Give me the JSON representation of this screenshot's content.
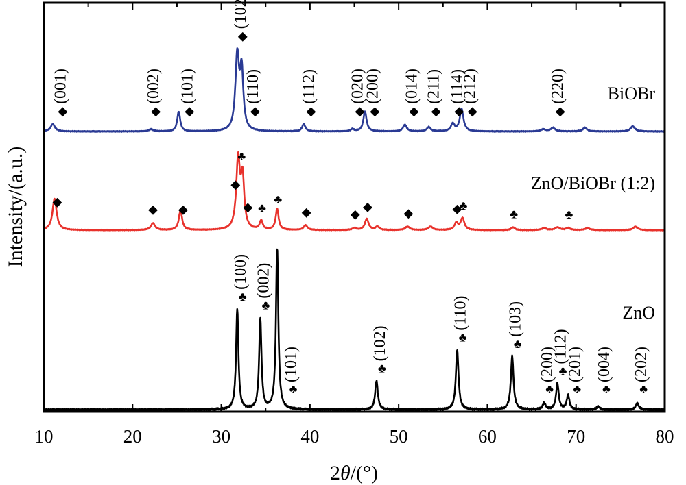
{
  "chart_data": {
    "type": "line",
    "xlabel_parts": [
      "2",
      "θ",
      "/(°)"
    ],
    "ylabel": "Intensity/(a.u.)",
    "xlim": [
      10,
      80
    ],
    "xticks": [
      "10",
      "20",
      "30",
      "40",
      "50",
      "60",
      "70",
      "80"
    ],
    "y_tick_labels": false,
    "grid": false,
    "series": [
      {
        "name": "BiOBr",
        "color": "#2a3a94",
        "baseline": 0.0,
        "peaks": [
          {
            "x": 11.0,
            "h": 0.1,
            "w": 0.3
          },
          {
            "x": 22.1,
            "h": 0.03,
            "w": 0.3
          },
          {
            "x": 25.2,
            "h": 0.27,
            "w": 0.2
          },
          {
            "x": 31.8,
            "h": 1.0,
            "w": 0.25
          },
          {
            "x": 32.3,
            "h": 0.78,
            "w": 0.22
          },
          {
            "x": 39.3,
            "h": 0.1,
            "w": 0.22
          },
          {
            "x": 44.8,
            "h": 0.03,
            "w": 0.25
          },
          {
            "x": 46.2,
            "h": 0.27,
            "w": 0.22
          },
          {
            "x": 50.7,
            "h": 0.09,
            "w": 0.25
          },
          {
            "x": 53.4,
            "h": 0.06,
            "w": 0.25
          },
          {
            "x": 56.1,
            "h": 0.1,
            "w": 0.25
          },
          {
            "x": 57.1,
            "h": 0.3,
            "w": 0.25
          },
          {
            "x": 66.3,
            "h": 0.03,
            "w": 0.3
          },
          {
            "x": 67.4,
            "h": 0.05,
            "w": 0.3
          },
          {
            "x": 71.0,
            "h": 0.05,
            "w": 0.3
          },
          {
            "x": 76.4,
            "h": 0.07,
            "w": 0.3
          }
        ],
        "annotations": [
          {
            "x": 11.5,
            "label": "(001)"
          },
          {
            "x": 22.0,
            "label": "(002)"
          },
          {
            "x": 25.8,
            "label": "(101)"
          },
          {
            "x": 31.8,
            "label": "(102)"
          },
          {
            "x": 33.2,
            "label": "(110)"
          },
          {
            "x": 39.5,
            "label": "(112)"
          },
          {
            "x": 45.0,
            "label": "(020)"
          },
          {
            "x": 46.7,
            "label": "(200)"
          },
          {
            "x": 51.1,
            "label": "(014)"
          },
          {
            "x": 53.6,
            "label": "(211)"
          },
          {
            "x": 56.2,
            "label": "(114)"
          },
          {
            "x": 57.7,
            "label": "(212)"
          },
          {
            "x": 67.6,
            "label": "(220)"
          }
        ]
      },
      {
        "name": "ZnO/BiOBr (1:2)",
        "color": "#e8322c",
        "baseline": 0.0,
        "peaks": [
          {
            "x": 11.2,
            "h": 0.45,
            "w": 0.28
          },
          {
            "x": 22.3,
            "h": 0.1,
            "w": 0.28
          },
          {
            "x": 25.4,
            "h": 0.28,
            "w": 0.22
          },
          {
            "x": 31.9,
            "h": 1.0,
            "w": 0.25
          },
          {
            "x": 32.4,
            "h": 0.7,
            "w": 0.22
          },
          {
            "x": 34.5,
            "h": 0.13,
            "w": 0.2
          },
          {
            "x": 36.3,
            "h": 0.3,
            "w": 0.2
          },
          {
            "x": 39.5,
            "h": 0.07,
            "w": 0.25
          },
          {
            "x": 45.0,
            "h": 0.03,
            "w": 0.25
          },
          {
            "x": 46.4,
            "h": 0.16,
            "w": 0.25
          },
          {
            "x": 47.6,
            "h": 0.05,
            "w": 0.25
          },
          {
            "x": 51.0,
            "h": 0.05,
            "w": 0.3
          },
          {
            "x": 53.6,
            "h": 0.05,
            "w": 0.3
          },
          {
            "x": 56.5,
            "h": 0.1,
            "w": 0.25
          },
          {
            "x": 57.2,
            "h": 0.17,
            "w": 0.25
          },
          {
            "x": 62.9,
            "h": 0.04,
            "w": 0.25
          },
          {
            "x": 66.4,
            "h": 0.03,
            "w": 0.3
          },
          {
            "x": 67.9,
            "h": 0.04,
            "w": 0.3
          },
          {
            "x": 69.1,
            "h": 0.03,
            "w": 0.3
          },
          {
            "x": 71.3,
            "h": 0.03,
            "w": 0.3
          },
          {
            "x": 76.7,
            "h": 0.05,
            "w": 0.3
          }
        ],
        "markers": [
          {
            "x": 11.5,
            "symbol": "◆"
          },
          {
            "x": 22.3,
            "symbol": "◆"
          },
          {
            "x": 25.7,
            "symbol": "◆"
          },
          {
            "x": 31.6,
            "symbol": "◆"
          },
          {
            "x": 32.3,
            "symbol": "♣"
          },
          {
            "x": 33.0,
            "symbol": "◆"
          },
          {
            "x": 34.6,
            "symbol": "♣"
          },
          {
            "x": 36.4,
            "symbol": "♣"
          },
          {
            "x": 39.6,
            "symbol": "◆"
          },
          {
            "x": 45.1,
            "symbol": "◆"
          },
          {
            "x": 46.5,
            "symbol": "◆"
          },
          {
            "x": 51.1,
            "symbol": "◆"
          },
          {
            "x": 56.6,
            "symbol": "◆"
          },
          {
            "x": 57.3,
            "symbol": "♣"
          },
          {
            "x": 63.0,
            "symbol": "♣"
          },
          {
            "x": 69.2,
            "symbol": "♣"
          }
        ]
      },
      {
        "name": "ZnO",
        "color": "#000000",
        "baseline": 0.0,
        "peaks": [
          {
            "x": 31.8,
            "h": 0.62,
            "w": 0.16
          },
          {
            "x": 34.4,
            "h": 0.56,
            "w": 0.16
          },
          {
            "x": 36.3,
            "h": 1.0,
            "w": 0.16
          },
          {
            "x": 47.5,
            "h": 0.18,
            "w": 0.18
          },
          {
            "x": 56.6,
            "h": 0.37,
            "w": 0.18
          },
          {
            "x": 62.8,
            "h": 0.33,
            "w": 0.18
          },
          {
            "x": 66.4,
            "h": 0.04,
            "w": 0.2
          },
          {
            "x": 67.9,
            "h": 0.16,
            "w": 0.18
          },
          {
            "x": 69.1,
            "h": 0.09,
            "w": 0.18
          },
          {
            "x": 72.5,
            "h": 0.02,
            "w": 0.2
          },
          {
            "x": 76.9,
            "h": 0.04,
            "w": 0.2
          }
        ],
        "annotations": [
          {
            "x": 31.8,
            "label": "(100)"
          },
          {
            "x": 34.4,
            "label": "(002)"
          },
          {
            "x": 37.5,
            "label": "(101)"
          },
          {
            "x": 47.5,
            "label": "(102)"
          },
          {
            "x": 56.6,
            "label": "(110)"
          },
          {
            "x": 62.8,
            "label": "(103)"
          },
          {
            "x": 66.4,
            "label": "(200)"
          },
          {
            "x": 67.9,
            "label": "(112)"
          },
          {
            "x": 69.5,
            "label": "(201)"
          },
          {
            "x": 72.8,
            "label": "(004)"
          },
          {
            "x": 77.0,
            "label": "(202)"
          }
        ]
      }
    ]
  }
}
